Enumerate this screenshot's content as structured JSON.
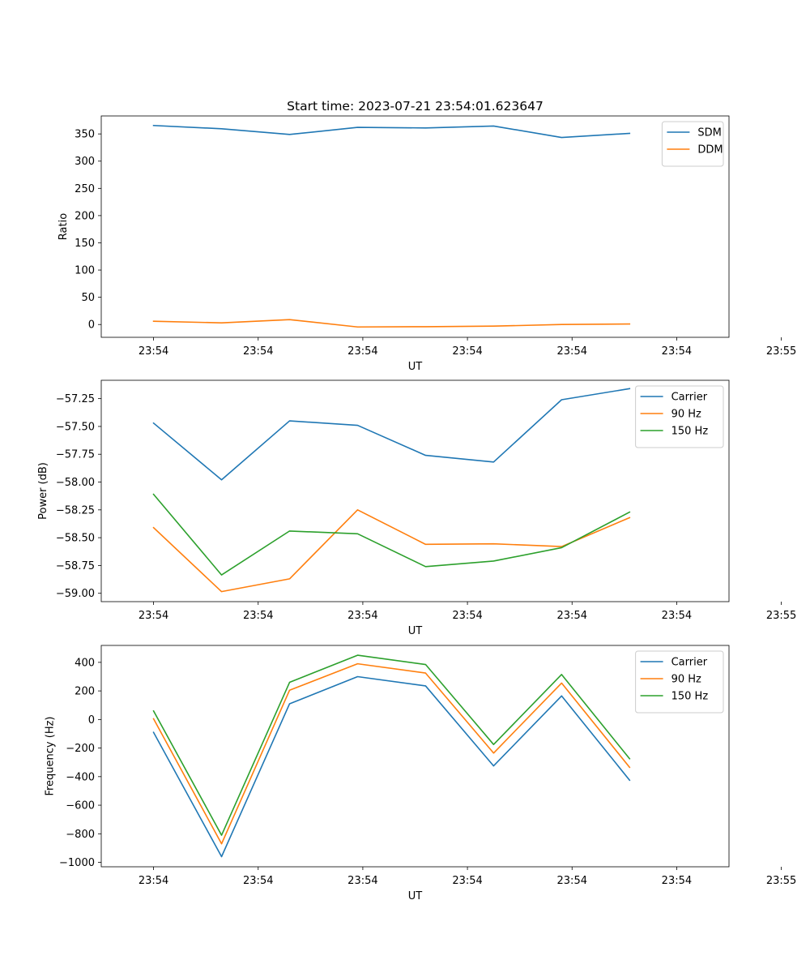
{
  "figure": {
    "title": "Start time: 2023-07-21 23:54:01.623647"
  },
  "chart_data": [
    {
      "type": "line",
      "id": "ratio",
      "title": "Start time: 2023-07-21 23:54:01.623647",
      "xlabel": "UT",
      "ylabel": "Ratio",
      "xlim": [
        -0.5,
        5.5
      ],
      "ylim": [
        -23.5,
        383
      ],
      "x_ticks": [
        0,
        1,
        2,
        3,
        4,
        5,
        6
      ],
      "x_tick_labels": [
        "23:54",
        "23:54",
        "23:54",
        "23:54",
        "23:54",
        "23:54",
        "23:55"
      ],
      "y_ticks": [
        0,
        50,
        100,
        150,
        200,
        250,
        300,
        350
      ],
      "y_tick_labels": [
        "0",
        "50",
        "100",
        "150",
        "200",
        "250",
        "300",
        "350"
      ],
      "legend_position": "upper right",
      "x": [
        0,
        0.65,
        1.3,
        1.95,
        2.6,
        3.25,
        3.9,
        4.55
      ],
      "series": [
        {
          "name": "SDM",
          "color": "#1f77b4",
          "values": [
            365.5,
            359.5,
            349,
            362,
            361,
            364.5,
            343.5,
            351
          ]
        },
        {
          "name": "DDM",
          "color": "#ff7f0e",
          "values": [
            6,
            3,
            9,
            -4.5,
            -4,
            -3,
            0,
            1
          ]
        }
      ]
    },
    {
      "type": "line",
      "id": "power",
      "xlabel": "UT",
      "ylabel": "Power (dB)",
      "xlim": [
        -0.5,
        5.5
      ],
      "ylim": [
        -59.075,
        -57.085
      ],
      "x_ticks": [
        0,
        1,
        2,
        3,
        4,
        5,
        6
      ],
      "x_tick_labels": [
        "23:54",
        "23:54",
        "23:54",
        "23:54",
        "23:54",
        "23:54",
        "23:55"
      ],
      "y_ticks": [
        -59.0,
        -58.75,
        -58.5,
        -58.25,
        -58.0,
        -57.75,
        -57.5,
        -57.25
      ],
      "y_tick_labels": [
        "−59.00",
        "−58.75",
        "−58.50",
        "−58.25",
        "−58.00",
        "−57.75",
        "−57.50",
        "−57.25"
      ],
      "legend_position": "upper right",
      "x": [
        0,
        0.65,
        1.3,
        1.95,
        2.6,
        3.25,
        3.9,
        4.55
      ],
      "series": [
        {
          "name": "Carrier",
          "color": "#1f77b4",
          "values": [
            -57.47,
            -57.98,
            -57.45,
            -57.49,
            -57.76,
            -57.82,
            -57.26,
            -57.16
          ]
        },
        {
          "name": "90 Hz",
          "color": "#ff7f0e",
          "values": [
            -58.41,
            -58.985,
            -58.87,
            -58.25,
            -58.56,
            -58.555,
            -58.58,
            -58.32
          ]
        },
        {
          "name": "150 Hz",
          "color": "#2ca02c",
          "values": [
            -58.11,
            -58.835,
            -58.44,
            -58.465,
            -58.76,
            -58.71,
            -58.59,
            -58.27
          ]
        }
      ]
    },
    {
      "type": "line",
      "id": "frequency",
      "xlabel": "UT",
      "ylabel": "Frequency (Hz)",
      "xlim": [
        -0.5,
        5.5
      ],
      "ylim": [
        -1031,
        518.5
      ],
      "x_ticks": [
        0,
        1,
        2,
        3,
        4,
        5,
        6
      ],
      "x_tick_labels": [
        "23:54",
        "23:54",
        "23:54",
        "23:54",
        "23:54",
        "23:54",
        "23:55"
      ],
      "y_ticks": [
        -1000,
        -800,
        -600,
        -400,
        -200,
        0,
        200,
        400
      ],
      "y_tick_labels": [
        "−1000",
        "−800",
        "−600",
        "−400",
        "−200",
        "0",
        "200",
        "400"
      ],
      "legend_position": "upper right",
      "x": [
        0,
        0.65,
        1.3,
        1.95,
        2.6,
        3.25,
        3.9,
        4.55
      ],
      "series": [
        {
          "name": "Carrier",
          "color": "#1f77b4",
          "values": [
            -90,
            -960,
            110,
            300,
            235,
            -325,
            165,
            -425
          ]
        },
        {
          "name": "90 Hz",
          "color": "#ff7f0e",
          "values": [
            5,
            -870,
            205,
            390,
            325,
            -235,
            255,
            -335
          ]
        },
        {
          "name": "150 Hz",
          "color": "#2ca02c",
          "values": [
            60,
            -810,
            260,
            450,
            385,
            -175,
            315,
            -275
          ]
        }
      ]
    }
  ]
}
